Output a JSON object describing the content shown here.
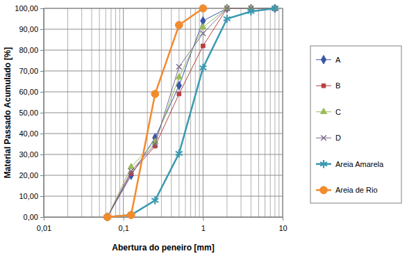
{
  "chart_data": {
    "type": "line",
    "x_label": "Abertura do peneiro [mm]",
    "y_label": "Material Passado Acumulado [%]",
    "log": "x",
    "grid": true,
    "legend": "right",
    "x": [
      0.063,
      0.125,
      0.25,
      0.5,
      1,
      2,
      4,
      8
    ],
    "xlim": [
      0.01,
      10
    ],
    "xticks": [
      {
        "value": 0.01,
        "label": "0,01"
      },
      {
        "value": 0.1,
        "label": "0,1"
      },
      1,
      10
    ],
    "ylim": [
      0,
      100
    ],
    "yticks": [
      {
        "value": 0,
        "label": "0,00"
      },
      {
        "value": 10,
        "label": "10,00"
      },
      {
        "value": 20,
        "label": "20,00"
      },
      {
        "value": 30,
        "label": "30,00"
      },
      {
        "value": 40,
        "label": "40,00"
      },
      {
        "value": 50,
        "label": "50,00"
      },
      {
        "value": 60,
        "label": "60,00"
      },
      {
        "value": 70,
        "label": "70,00"
      },
      {
        "value": 80,
        "label": "80,00"
      },
      {
        "value": 90,
        "label": "90,00"
      },
      {
        "value": 100,
        "label": "100,00"
      }
    ],
    "series": [
      {
        "name": "A",
        "color": "#3a56a8",
        "marker": "diamond",
        "values": [
          0,
          20,
          38,
          63,
          94,
          100,
          100,
          100
        ]
      },
      {
        "name": "B",
        "color": "#b84040",
        "marker": "square",
        "values": [
          0,
          21,
          34,
          59,
          82,
          100,
          100,
          100
        ]
      },
      {
        "name": "C",
        "color": "#9bbb59",
        "marker": "triangle",
        "values": [
          0,
          24,
          36,
          67,
          91,
          100,
          100,
          100
        ]
      },
      {
        "name": "D",
        "color": "#7a6a90",
        "marker": "x",
        "values": [
          0,
          22,
          35,
          72,
          88,
          100,
          100,
          100
        ]
      },
      {
        "name": "Areia Amarela",
        "color": "#3a9ab0",
        "marker": "star",
        "values": [
          0,
          1,
          8,
          30.5,
          71.5,
          95,
          98.5,
          100
        ]
      },
      {
        "name": "Areia de Rio",
        "color": "#f28a2e",
        "marker": "circle",
        "values": [
          0,
          1,
          59,
          92,
          100,
          null,
          null,
          null
        ]
      }
    ]
  }
}
